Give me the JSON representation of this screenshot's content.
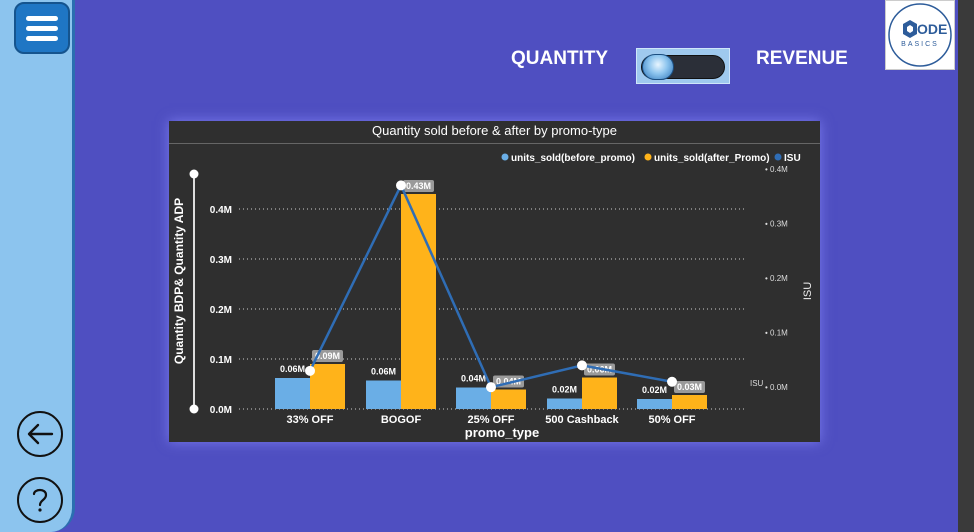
{
  "header": {
    "left_label": "QUANTITY",
    "right_label": "REVENUE",
    "logo_line1": "ODE",
    "logo_line2": "BASICS"
  },
  "icons": {
    "menu": "hamburger-menu-icon",
    "back": "back-arrow-icon",
    "help": "question-mark-icon",
    "toggle": "toggle-switch"
  },
  "colors": {
    "background": "#4f4fc1",
    "before_promo": "#6aaee6",
    "after_promo": "#ffb31a",
    "isu": "#2f6db5"
  },
  "chart_data": {
    "type": "bar",
    "title": "Quantity sold before & after by promo-type",
    "xlabel": "promo_type",
    "ylabel": "Quantity BDP& Quantity ADP",
    "y2label": "ISU",
    "categories": [
      "33% OFF",
      "BOGOF",
      "25% OFF",
      "500 Cashback",
      "50% OFF"
    ],
    "ylim": [
      0,
      0.48
    ],
    "y_ticks": [
      "0.0M",
      "0.1M",
      "0.2M",
      "0.3M",
      "0.4M"
    ],
    "y2lim": [
      -0.04,
      0.4
    ],
    "y2_ticks": [
      "0.0M",
      "0.1M",
      "0.2M",
      "0.3M",
      "0.4M"
    ],
    "y2_axis_tag": "ISU",
    "legend_position": "top-right",
    "series": [
      {
        "name": "units_sold(before_promo)",
        "values": [
          0.062,
          0.057,
          0.043,
          0.021,
          0.02
        ],
        "labels": [
          "0.06M",
          "0.06M",
          "0.04M",
          "0.02M",
          "0.02M"
        ]
      },
      {
        "name": "units_sold(after_Promo)",
        "values": [
          0.09,
          0.43,
          0.039,
          0.063,
          0.028
        ],
        "labels": [
          "0.09M",
          "0.43M",
          "0.04M",
          "0.06M",
          "0.03M"
        ]
      },
      {
        "name": "ISU",
        "type": "line",
        "values": [
          0.03,
          0.37,
          0.0,
          0.04,
          0.01
        ]
      }
    ]
  }
}
